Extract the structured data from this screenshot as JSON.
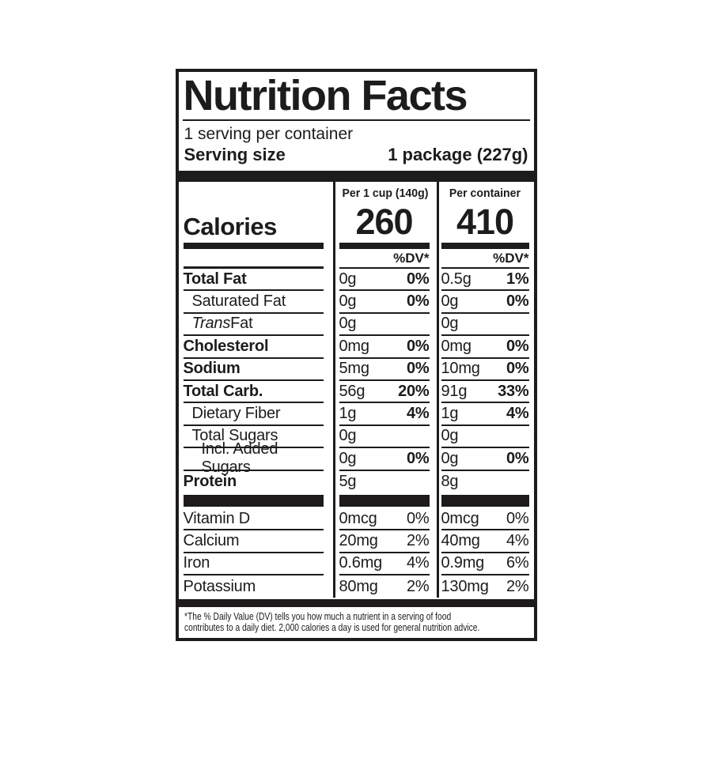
{
  "colors": {
    "ink": "#1d1b1b",
    "paper": "#ffffff"
  },
  "label": {
    "title": "Nutrition Facts",
    "servings_per_container": "1 serving per container",
    "serving_size_label": "Serving size",
    "serving_size_value": "1 package (227g)",
    "calories_word": "Calories",
    "dv_header": "%DV*",
    "col_cup": {
      "header": "Per 1 cup (140g)",
      "calories": "260"
    },
    "col_container": {
      "header": "Per container",
      "calories": "410"
    },
    "rows": [
      {
        "name": "Total Fat",
        "cup": {
          "amount": "0g",
          "dv": "0%"
        },
        "container": {
          "amount": "0.5g",
          "dv": "1%"
        }
      },
      {
        "name": "Saturated Fat",
        "cup": {
          "amount": "0g",
          "dv": "0%"
        },
        "container": {
          "amount": "0g",
          "dv": "0%"
        }
      },
      {
        "name_italic": "Trans",
        "name_rest": " Fat",
        "cup": {
          "amount": "0g",
          "dv": ""
        },
        "container": {
          "amount": "0g",
          "dv": ""
        }
      },
      {
        "name": "Cholesterol",
        "cup": {
          "amount": "0mg",
          "dv": "0%"
        },
        "container": {
          "amount": "0mg",
          "dv": "0%"
        }
      },
      {
        "name": "Sodium",
        "cup": {
          "amount": "5mg",
          "dv": "0%"
        },
        "container": {
          "amount": "10mg",
          "dv": "0%"
        }
      },
      {
        "name": "Total Carb.",
        "cup": {
          "amount": "56g",
          "dv": "20%"
        },
        "container": {
          "amount": "91g",
          "dv": "33%"
        }
      },
      {
        "name": "Dietary Fiber",
        "cup": {
          "amount": "1g",
          "dv": "4%"
        },
        "container": {
          "amount": "1g",
          "dv": "4%"
        }
      },
      {
        "name": "Total Sugars",
        "cup": {
          "amount": "0g",
          "dv": ""
        },
        "container": {
          "amount": "0g",
          "dv": ""
        }
      },
      {
        "name": "Incl. Added Sugars",
        "cup": {
          "amount": "0g",
          "dv": "0%"
        },
        "container": {
          "amount": "0g",
          "dv": "0%"
        }
      },
      {
        "name": "Protein",
        "cup": {
          "amount": "5g",
          "dv": ""
        },
        "container": {
          "amount": "8g",
          "dv": ""
        }
      }
    ],
    "micronutrients": [
      {
        "name": "Vitamin D",
        "cup": {
          "amount": "0mcg",
          "dv": "0%"
        },
        "container": {
          "amount": "0mcg",
          "dv": "0%"
        }
      },
      {
        "name": "Calcium",
        "cup": {
          "amount": "20mg",
          "dv": "2%"
        },
        "container": {
          "amount": "40mg",
          "dv": "4%"
        }
      },
      {
        "name": "Iron",
        "cup": {
          "amount": "0.6mg",
          "dv": "4%"
        },
        "container": {
          "amount": "0.9mg",
          "dv": "6%"
        }
      },
      {
        "name": "Potassium",
        "cup": {
          "amount": "80mg",
          "dv": "2%"
        },
        "container": {
          "amount": "130mg",
          "dv": "2%"
        }
      }
    ],
    "footnote_line1": "*The % Daily Value (DV) tells you how much a nutrient in a serving of food",
    "footnote_line2": "contributes to a daily diet. 2,000 calories a day is used for general nutrition advice."
  }
}
